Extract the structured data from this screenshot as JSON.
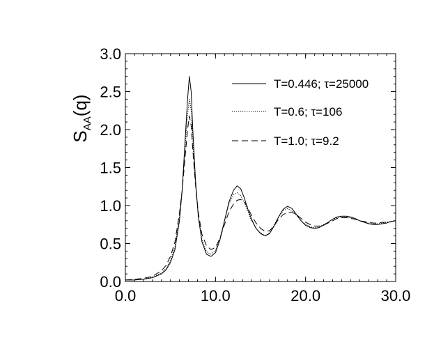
{
  "chart_data": {
    "type": "line",
    "title": "",
    "xlabel": "",
    "ylabel": {
      "main": "S",
      "sub": "AA",
      "rest": "(q)"
    },
    "xlim": [
      0,
      30
    ],
    "ylim": [
      0,
      3
    ],
    "x_ticks": [
      0,
      10,
      20,
      30
    ],
    "x_tick_labels": [
      "0.0",
      "10.0",
      "20.0",
      "30.0"
    ],
    "y_ticks": [
      0,
      0.5,
      1,
      1.5,
      2,
      2.5,
      3
    ],
    "y_tick_labels": [
      "0.0",
      "0.5",
      "1.0",
      "1.5",
      "2.0",
      "2.5",
      "3.0"
    ],
    "grid": false,
    "legend_position": "top-right",
    "series": [
      {
        "name": "T=0.446; τ=25000",
        "style": "solid",
        "x": [
          0,
          1,
          2,
          3,
          4,
          4.5,
          5,
          5.5,
          6,
          6.3,
          6.6,
          6.9,
          7.1,
          7.3,
          7.5,
          7.8,
          8.1,
          8.5,
          9.0,
          9.5,
          10.0,
          10.5,
          11.0,
          11.5,
          12.0,
          12.4,
          12.8,
          13.2,
          13.6,
          14.0,
          14.5,
          15.0,
          15.5,
          16.0,
          16.5,
          17.0,
          17.5,
          18.0,
          18.5,
          19.0,
          19.5,
          20.0,
          20.5,
          21.0,
          21.5,
          22.0,
          22.5,
          23.0,
          23.5,
          24.0,
          24.5,
          25.0,
          25.5,
          26.0,
          26.5,
          27.0,
          27.5,
          28.0,
          28.5,
          29.0,
          29.5,
          30.0
        ],
        "y": [
          0.02,
          0.02,
          0.03,
          0.05,
          0.1,
          0.15,
          0.25,
          0.42,
          0.8,
          1.2,
          1.8,
          2.4,
          2.7,
          2.5,
          1.95,
          1.3,
          0.85,
          0.52,
          0.36,
          0.33,
          0.38,
          0.55,
          0.8,
          1.05,
          1.2,
          1.26,
          1.22,
          1.1,
          0.95,
          0.82,
          0.7,
          0.63,
          0.6,
          0.63,
          0.73,
          0.85,
          0.95,
          0.99,
          0.96,
          0.88,
          0.8,
          0.74,
          0.71,
          0.7,
          0.71,
          0.74,
          0.78,
          0.82,
          0.85,
          0.86,
          0.86,
          0.85,
          0.83,
          0.8,
          0.78,
          0.76,
          0.75,
          0.75,
          0.76,
          0.77,
          0.79,
          0.8
        ]
      },
      {
        "name": "T=0.6; τ=106",
        "style": "dotted",
        "x": [
          0,
          1,
          2,
          3,
          4,
          4.5,
          5,
          5.5,
          6,
          6.3,
          6.6,
          6.9,
          7.1,
          7.3,
          7.5,
          7.8,
          8.1,
          8.5,
          9.0,
          9.5,
          10.0,
          10.5,
          11.0,
          11.5,
          12.0,
          12.4,
          12.8,
          13.2,
          13.6,
          14.0,
          14.5,
          15.0,
          15.5,
          16.0,
          16.5,
          17.0,
          17.5,
          18.0,
          18.5,
          19.0,
          19.5,
          20.0,
          20.5,
          21.0,
          21.5,
          22.0,
          22.5,
          23.0,
          23.5,
          24.0,
          24.5,
          25.0,
          25.5,
          26.0,
          26.5,
          27.0,
          27.5,
          28.0,
          28.5,
          29.0,
          29.5,
          30.0
        ],
        "y": [
          0.02,
          0.02,
          0.03,
          0.06,
          0.11,
          0.17,
          0.28,
          0.46,
          0.85,
          1.2,
          1.7,
          2.2,
          2.4,
          2.25,
          1.8,
          1.25,
          0.85,
          0.55,
          0.39,
          0.36,
          0.41,
          0.57,
          0.8,
          1.02,
          1.14,
          1.17,
          1.13,
          1.04,
          0.92,
          0.8,
          0.7,
          0.64,
          0.61,
          0.64,
          0.74,
          0.85,
          0.93,
          0.96,
          0.93,
          0.87,
          0.8,
          0.75,
          0.72,
          0.71,
          0.72,
          0.75,
          0.78,
          0.82,
          0.84,
          0.85,
          0.85,
          0.84,
          0.82,
          0.8,
          0.78,
          0.77,
          0.76,
          0.76,
          0.77,
          0.78,
          0.79,
          0.8
        ]
      },
      {
        "name": "T=1.0; τ=9.2",
        "style": "dashed",
        "x": [
          0,
          1,
          2,
          3,
          4,
          4.5,
          5,
          5.5,
          6,
          6.3,
          6.6,
          6.9,
          7.1,
          7.3,
          7.5,
          7.8,
          8.1,
          8.5,
          9.0,
          9.5,
          10.0,
          10.5,
          11.0,
          11.5,
          12.0,
          12.4,
          12.8,
          13.2,
          13.6,
          14.0,
          14.5,
          15.0,
          15.5,
          16.0,
          16.5,
          17.0,
          17.5,
          18.0,
          18.5,
          19.0,
          19.5,
          20.0,
          20.5,
          21.0,
          21.5,
          22.0,
          22.5,
          23.0,
          23.5,
          24.0,
          24.5,
          25.0,
          25.5,
          26.0,
          26.5,
          27.0,
          27.5,
          28.0,
          28.5,
          29.0,
          29.5,
          30.0
        ],
        "y": [
          0.02,
          0.03,
          0.04,
          0.07,
          0.14,
          0.21,
          0.33,
          0.52,
          0.9,
          1.2,
          1.6,
          2.0,
          2.18,
          2.05,
          1.7,
          1.25,
          0.9,
          0.62,
          0.47,
          0.42,
          0.45,
          0.57,
          0.75,
          0.92,
          1.02,
          1.07,
          1.08,
          1.05,
          0.97,
          0.87,
          0.77,
          0.7,
          0.66,
          0.67,
          0.73,
          0.82,
          0.88,
          0.91,
          0.91,
          0.88,
          0.83,
          0.78,
          0.75,
          0.73,
          0.73,
          0.74,
          0.77,
          0.8,
          0.83,
          0.84,
          0.84,
          0.83,
          0.82,
          0.8,
          0.79,
          0.78,
          0.77,
          0.77,
          0.78,
          0.78,
          0.79,
          0.8
        ]
      }
    ]
  }
}
